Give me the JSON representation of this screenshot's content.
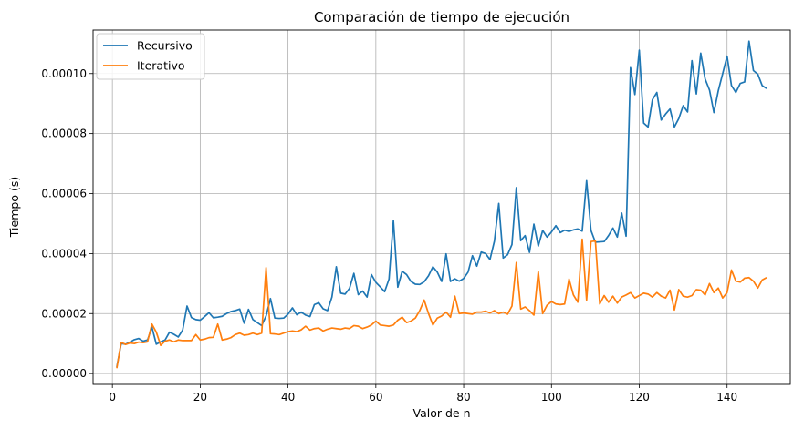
{
  "chart_data": {
    "type": "line",
    "title": "Comparación de tiempo de ejecución",
    "xlabel": "Valor de n",
    "ylabel": "Tiempo (s)",
    "xlim": [
      -4.4,
      154.4
    ],
    "ylim": [
      -3.6e-06,
      0.0001145
    ],
    "xticks": [
      0,
      20,
      40,
      60,
      80,
      100,
      120,
      140
    ],
    "xtick_labels": [
      "0",
      "20",
      "40",
      "60",
      "80",
      "100",
      "120",
      "140"
    ],
    "yticks": [
      0,
      2e-05,
      4e-05,
      6e-05,
      8e-05,
      0.0001
    ],
    "ytick_labels": [
      "0.00000",
      "0.00002",
      "0.00004",
      "0.00006",
      "0.00008",
      "0.00010"
    ],
    "grid": true,
    "legend_position": "top-left",
    "x_start": 1,
    "series": [
      {
        "name": "Recursivo",
        "color": "#1f77b4",
        "values": [
          2.2e-06,
          1e-05,
          9.8e-06,
          1.05e-05,
          1.13e-05,
          1.17e-05,
          1.08e-05,
          1.12e-05,
          1.55e-05,
          9.8e-06,
          1.06e-05,
          1.12e-05,
          1.38e-05,
          1.31e-05,
          1.22e-05,
          1.45e-05,
          2.25e-05,
          1.87e-05,
          1.8e-05,
          1.78e-05,
          1.9e-05,
          2.03e-05,
          1.86e-05,
          1.88e-05,
          1.91e-05,
          2e-05,
          2.07e-05,
          2.1e-05,
          2.15e-05,
          1.68e-05,
          2.14e-05,
          1.8e-05,
          1.7e-05,
          1.6e-05,
          1.92e-05,
          2.5e-05,
          1.85e-05,
          1.84e-05,
          1.85e-05,
          1.98e-05,
          2.19e-05,
          1.96e-05,
          2.05e-05,
          1.95e-05,
          1.9e-05,
          2.3e-05,
          2.36e-05,
          2.16e-05,
          2.1e-05,
          2.55e-05,
          3.56e-05,
          2.68e-05,
          2.65e-05,
          2.84e-05,
          3.34e-05,
          2.63e-05,
          2.75e-05,
          2.55e-05,
          3.3e-05,
          3.04e-05,
          2.89e-05,
          2.73e-05,
          3.15e-05,
          5.1e-05,
          2.88e-05,
          3.41e-05,
          3.3e-05,
          3.07e-05,
          2.98e-05,
          2.97e-05,
          3.06e-05,
          3.26e-05,
          3.56e-05,
          3.38e-05,
          3.07e-05,
          3.99e-05,
          3.07e-05,
          3.16e-05,
          3.08e-05,
          3.17e-05,
          3.38e-05,
          3.93e-05,
          3.58e-05,
          4.05e-05,
          4e-05,
          3.8e-05,
          4.41e-05,
          5.67e-05,
          3.85e-05,
          3.96e-05,
          4.3e-05,
          6.2e-05,
          4.43e-05,
          4.6e-05,
          4.04e-05,
          4.98e-05,
          4.25e-05,
          4.77e-05,
          4.55e-05,
          4.72e-05,
          4.93e-05,
          4.7e-05,
          4.78e-05,
          4.74e-05,
          4.79e-05,
          4.82e-05,
          4.75e-05,
          6.43e-05,
          4.77e-05,
          4.38e-05,
          4.39e-05,
          4.4e-05,
          4.6e-05,
          4.85e-05,
          4.55e-05,
          5.35e-05,
          4.58e-05,
          0.000102,
          9.3e-05,
          0.0001078,
          8.35e-05,
          8.22e-05,
          9.13e-05,
          9.37e-05,
          8.45e-05,
          8.65e-05,
          8.82e-05,
          8.22e-05,
          8.5e-05,
          8.93e-05,
          8.72e-05,
          0.0001043,
          9.32e-05,
          0.0001068,
          9.82e-05,
          9.45e-05,
          8.7e-05,
          9.43e-05,
          0.0001,
          0.0001058,
          9.6e-05,
          9.37e-05,
          9.67e-05,
          9.72e-05,
          0.0001108,
          0.000101,
          9.98e-05,
          9.6e-05,
          9.5e-05
        ]
      },
      {
        "name": "Iterativo",
        "color": "#ff7f0e",
        "values": [
          1.8e-06,
          1.04e-05,
          9.7e-06,
          1.02e-05,
          1e-05,
          1.05e-05,
          1.03e-05,
          1.06e-05,
          1.65e-05,
          1.38e-05,
          9.4e-06,
          1.08e-05,
          1.12e-05,
          1.06e-05,
          1.12e-05,
          1.1e-05,
          1.1e-05,
          1.1e-05,
          1.3e-05,
          1.12e-05,
          1.15e-05,
          1.2e-05,
          1.21e-05,
          1.65e-05,
          1.12e-05,
          1.15e-05,
          1.2e-05,
          1.3e-05,
          1.35e-05,
          1.28e-05,
          1.3e-05,
          1.35e-05,
          1.3e-05,
          1.35e-05,
          3.53e-05,
          1.33e-05,
          1.32e-05,
          1.3e-05,
          1.35e-05,
          1.4e-05,
          1.42e-05,
          1.4e-05,
          1.46e-05,
          1.58e-05,
          1.45e-05,
          1.5e-05,
          1.52e-05,
          1.42e-05,
          1.48e-05,
          1.52e-05,
          1.5e-05,
          1.48e-05,
          1.52e-05,
          1.5e-05,
          1.6e-05,
          1.58e-05,
          1.5e-05,
          1.55e-05,
          1.62e-05,
          1.75e-05,
          1.62e-05,
          1.6e-05,
          1.58e-05,
          1.62e-05,
          1.78e-05,
          1.88e-05,
          1.7e-05,
          1.75e-05,
          1.85e-05,
          2.1e-05,
          2.45e-05,
          2e-05,
          1.62e-05,
          1.85e-05,
          1.92e-05,
          2.05e-05,
          1.88e-05,
          2.58e-05,
          2e-05,
          2.02e-05,
          2e-05,
          1.98e-05,
          2.05e-05,
          2.05e-05,
          2.08e-05,
          2.02e-05,
          2.1e-05,
          2e-05,
          2.05e-05,
          1.98e-05,
          2.25e-05,
          3.7e-05,
          2.15e-05,
          2.22e-05,
          2.1e-05,
          1.95e-05,
          3.4e-05,
          2e-05,
          2.28e-05,
          2.4e-05,
          2.32e-05,
          2.3e-05,
          2.32e-05,
          3.15e-05,
          2.62e-05,
          2.38e-05,
          4.48e-05,
          2.45e-05,
          4.4e-05,
          4.42e-05,
          2.32e-05,
          2.6e-05,
          2.38e-05,
          2.58e-05,
          2.35e-05,
          2.55e-05,
          2.62e-05,
          2.7e-05,
          2.52e-05,
          2.6e-05,
          2.68e-05,
          2.65e-05,
          2.55e-05,
          2.7e-05,
          2.58e-05,
          2.52e-05,
          2.78e-05,
          2.12e-05,
          2.8e-05,
          2.58e-05,
          2.55e-05,
          2.6e-05,
          2.8e-05,
          2.78e-05,
          2.62e-05,
          3e-05,
          2.7e-05,
          2.85e-05,
          2.52e-05,
          2.7e-05,
          3.45e-05,
          3.08e-05,
          3.05e-05,
          3.18e-05,
          3.2e-05,
          3.08e-05,
          2.85e-05,
          3.12e-05,
          3.2e-05
        ]
      }
    ]
  }
}
